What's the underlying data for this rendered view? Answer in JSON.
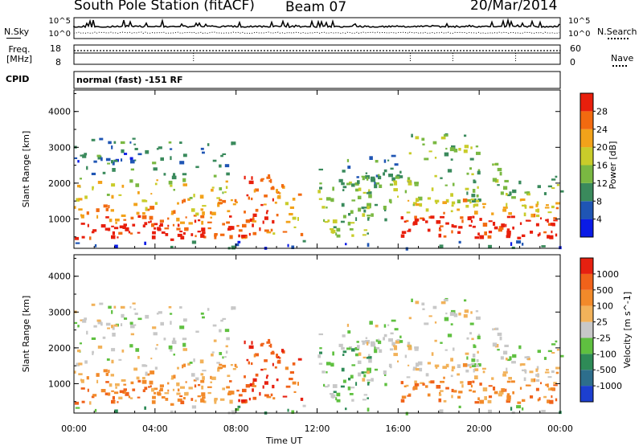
{
  "header": {
    "station": "South Pole Station (fitACF)",
    "beam": "Beam 07",
    "date": "20/Mar/2014"
  },
  "noise_panel": {
    "left_label": "N.Sky",
    "right_label": "N.Search",
    "ticks_left": [
      "10^5",
      "10^0"
    ],
    "ticks_right": [
      "10^5",
      "10^0"
    ]
  },
  "freq_panel": {
    "left_label_1": "Freq.",
    "left_label_2": "[MHz]",
    "right_label": "Nave",
    "ticks_left": [
      "18",
      "8"
    ],
    "ticks_right": [
      "60",
      "0"
    ]
  },
  "cpid": {
    "label": "CPID",
    "value": "normal (fast) -151 RF"
  },
  "x_axis": {
    "label": "Time UT",
    "ticks": [
      "00:00",
      "04:00",
      "08:00",
      "12:00",
      "16:00",
      "20:00",
      "00:00"
    ]
  },
  "chart_data": [
    {
      "type": "heatmap",
      "panel": "power",
      "ylabel": "Slant Range [km]",
      "xlabel": "",
      "x_range": [
        0,
        24
      ],
      "ylim": [
        180,
        4600
      ],
      "y_ticks": [
        1000,
        2000,
        3000,
        4000
      ],
      "colorbar_label": "Power [dB]",
      "colorbar_ticks": [
        4,
        8,
        12,
        16,
        20,
        24,
        28
      ],
      "colorbar_colors": [
        "#0a1be6",
        "#1f55b4",
        "#3a8a5c",
        "#7ab842",
        "#c9cc2a",
        "#f2a21a",
        "#f26a10",
        "#e81f0c"
      ]
    },
    {
      "type": "heatmap",
      "panel": "velocity",
      "ylabel": "Slant Range [km]",
      "xlabel": "Time UT",
      "x_range": [
        0,
        24
      ],
      "ylim": [
        180,
        4600
      ],
      "y_ticks": [
        1000,
        2000,
        3000,
        4000
      ],
      "colorbar_label": "Velocity [m s^-1]",
      "colorbar_ticks": [
        1000,
        500,
        100,
        25,
        -25,
        -100,
        -500,
        -1000
      ],
      "colorbar_colors": [
        "#1c3fd0",
        "#2d6e8c",
        "#2e8b57",
        "#5fc040",
        "#c8c8c8",
        "#f2b25a",
        "#f28a2a",
        "#f0621a",
        "#e62010"
      ]
    }
  ]
}
